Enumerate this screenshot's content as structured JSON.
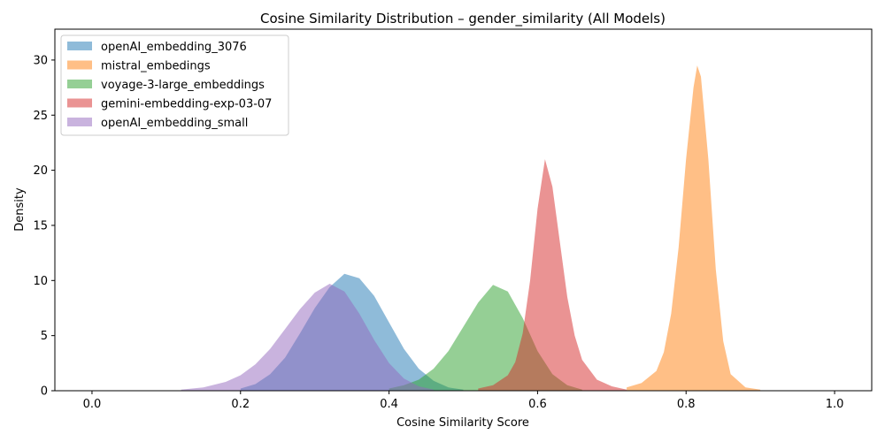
{
  "chart_data": {
    "type": "area",
    "title": "Cosine Similarity Distribution – gender_similarity (All Models)",
    "xlabel": "Cosine Similarity Score",
    "ylabel": "Density",
    "xlim": [
      -0.05,
      1.05
    ],
    "ylim": [
      0,
      32.8
    ],
    "xticks": [
      0.0,
      0.2,
      0.4,
      0.6,
      0.8,
      1.0
    ],
    "xtick_labels": [
      "0.0",
      "0.2",
      "0.4",
      "0.6",
      "0.8",
      "1.0"
    ],
    "yticks": [
      0,
      5,
      10,
      15,
      20,
      25,
      30
    ],
    "ytick_labels": [
      "0",
      "5",
      "10",
      "15",
      "20",
      "25",
      "30"
    ],
    "grid": false,
    "legend_position": "top-left",
    "series": [
      {
        "name": "openAI_embedding_3076",
        "color": "#1f77b4",
        "x": [
          0.2,
          0.22,
          0.24,
          0.26,
          0.28,
          0.3,
          0.32,
          0.34,
          0.36,
          0.38,
          0.4,
          0.42,
          0.44,
          0.46,
          0.48,
          0.5
        ],
        "values": [
          0.2,
          0.6,
          1.5,
          3.0,
          5.2,
          7.5,
          9.4,
          10.6,
          10.2,
          8.6,
          6.2,
          3.8,
          2.0,
          0.9,
          0.3,
          0.1
        ]
      },
      {
        "name": "mistral_embedings",
        "color": "#ff7f0e",
        "x": [
          0.72,
          0.74,
          0.76,
          0.77,
          0.78,
          0.79,
          0.8,
          0.81,
          0.815,
          0.82,
          0.83,
          0.84,
          0.85,
          0.86,
          0.88,
          0.9
        ],
        "values": [
          0.3,
          0.7,
          1.8,
          3.5,
          7.0,
          13.0,
          21.0,
          27.5,
          29.5,
          28.5,
          21.0,
          11.0,
          4.5,
          1.5,
          0.3,
          0.1
        ]
      },
      {
        "name": "voyage-3-large_embeddings",
        "color": "#2ca02c",
        "x": [
          0.4,
          0.42,
          0.44,
          0.46,
          0.48,
          0.5,
          0.52,
          0.54,
          0.56,
          0.58,
          0.6,
          0.62,
          0.64,
          0.66
        ],
        "values": [
          0.2,
          0.5,
          1.0,
          2.0,
          3.6,
          5.8,
          8.0,
          9.6,
          9.0,
          6.6,
          3.6,
          1.5,
          0.5,
          0.1
        ]
      },
      {
        "name": "gemini-embedding-exp-03-07",
        "color": "#d62728",
        "x": [
          0.52,
          0.54,
          0.56,
          0.57,
          0.58,
          0.59,
          0.6,
          0.61,
          0.62,
          0.63,
          0.64,
          0.65,
          0.66,
          0.68,
          0.7,
          0.72
        ],
        "values": [
          0.2,
          0.5,
          1.4,
          2.6,
          5.2,
          10.0,
          16.5,
          21.0,
          18.5,
          13.5,
          8.5,
          5.0,
          2.8,
          1.0,
          0.4,
          0.1
        ]
      },
      {
        "name": "openAI_embedding_small",
        "color": "#9467bd",
        "x": [
          0.12,
          0.15,
          0.18,
          0.2,
          0.22,
          0.24,
          0.26,
          0.28,
          0.3,
          0.32,
          0.34,
          0.36,
          0.38,
          0.4,
          0.42,
          0.44,
          0.46
        ],
        "values": [
          0.1,
          0.3,
          0.8,
          1.4,
          2.4,
          3.8,
          5.6,
          7.4,
          8.9,
          9.7,
          9.0,
          7.0,
          4.6,
          2.5,
          1.1,
          0.4,
          0.1
        ]
      }
    ]
  }
}
